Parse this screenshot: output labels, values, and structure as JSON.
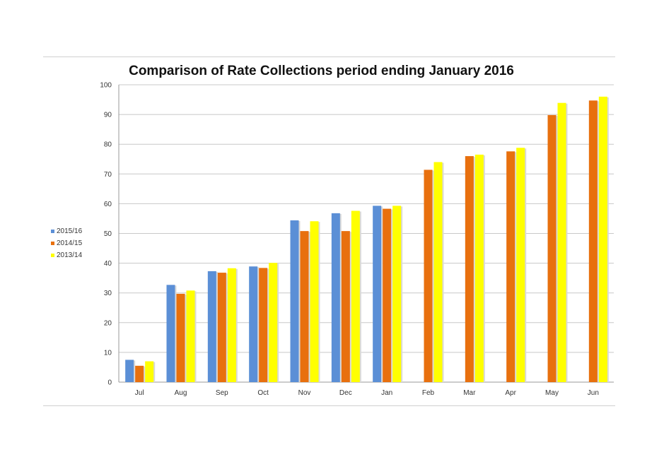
{
  "chart_data": {
    "type": "bar",
    "title": "Comparison of Rate Collections period ending January 2016",
    "xlabel": "",
    "ylabel": "",
    "ylim": [
      0,
      100
    ],
    "yticks": [
      0,
      10,
      20,
      30,
      40,
      50,
      60,
      70,
      80,
      90,
      100
    ],
    "grid": true,
    "legend_position": "left",
    "categories": [
      "Jul",
      "Aug",
      "Sep",
      "Oct",
      "Nov",
      "Dec",
      "Jan",
      "Feb",
      "Mar",
      "Apr",
      "May",
      "Jun"
    ],
    "series": [
      {
        "name": "2015/16",
        "color": "#5b8fd6",
        "values": [
          7.5,
          32.7,
          37.3,
          38.9,
          54.4,
          56.8,
          59.3,
          null,
          null,
          null,
          null,
          null
        ]
      },
      {
        "name": "2014/15",
        "color": "#e8700e",
        "values": [
          5.5,
          29.7,
          36.8,
          38.4,
          50.8,
          50.8,
          58.3,
          71.4,
          76.0,
          77.6,
          89.8,
          94.7
        ]
      },
      {
        "name": "2013/14",
        "color": "#ffff00",
        "values": [
          7.0,
          30.8,
          38.3,
          40.1,
          54.1,
          57.6,
          59.3,
          74.0,
          76.5,
          78.8,
          93.9,
          96.0
        ]
      }
    ]
  }
}
